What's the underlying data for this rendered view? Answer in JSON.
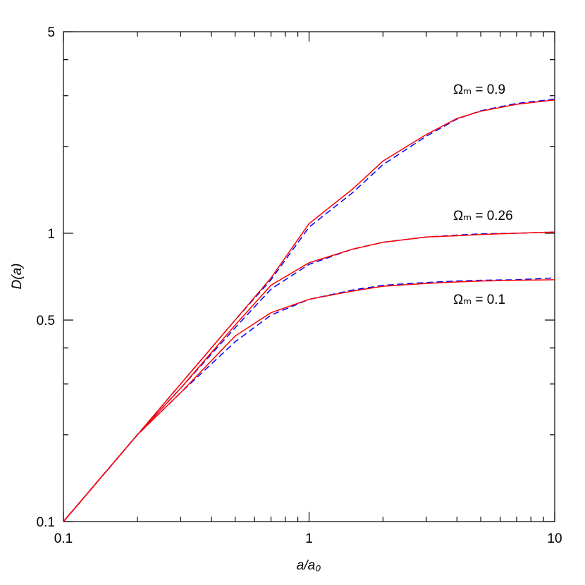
{
  "chart_data": {
    "type": "line",
    "log_x": true,
    "log_y": true,
    "xlabel": "a/a₀",
    "ylabel": "D(a)",
    "annotations": [
      "Ωₘ = 0.9",
      "Ωₘ = 0.26",
      "Ωₘ = 0.1"
    ],
    "x": [
      0.1,
      0.2,
      0.3,
      0.5,
      0.7,
      1,
      1.5,
      2,
      3,
      4,
      5,
      7,
      10
    ],
    "series": [
      {
        "color": "#0000ff",
        "style": "dashed",
        "values": [
          0.1,
          0.2,
          0.3,
          0.5,
          0.69,
          1.05,
          1.38,
          1.73,
          2.17,
          2.49,
          2.66,
          2.82,
          2.92
        ]
      },
      {
        "color": "#ff0000",
        "style": "solid",
        "values": [
          0.1,
          0.2,
          0.3,
          0.5,
          0.7,
          1.08,
          1.42,
          1.78,
          2.2,
          2.5,
          2.65,
          2.8,
          2.9
        ]
      },
      {
        "color": "#0000ff",
        "style": "dashed",
        "values": [
          0.1,
          0.2,
          0.29,
          0.47,
          0.64,
          0.78,
          0.88,
          0.93,
          0.97,
          0.985,
          0.995,
          1.0,
          1.01
        ]
      },
      {
        "color": "#ff0000",
        "style": "solid",
        "values": [
          0.1,
          0.2,
          0.29,
          0.48,
          0.66,
          0.79,
          0.88,
          0.93,
          0.97,
          0.98,
          0.99,
          1.0,
          1.01
        ]
      },
      {
        "color": "#0000ff",
        "style": "dashed",
        "values": [
          0.1,
          0.2,
          0.28,
          0.42,
          0.52,
          0.59,
          0.635,
          0.66,
          0.675,
          0.683,
          0.687,
          0.69,
          0.7
        ]
      },
      {
        "color": "#ff0000",
        "style": "solid",
        "values": [
          0.1,
          0.2,
          0.28,
          0.44,
          0.53,
          0.59,
          0.63,
          0.655,
          0.67,
          0.678,
          0.683,
          0.687,
          0.69
        ]
      }
    ],
    "xlim": [
      0.1,
      10
    ],
    "ylim": [
      0.1,
      5
    ],
    "xticks": [
      0.1,
      1,
      10
    ],
    "yticks": [
      0.1,
      0.5,
      1,
      5
    ],
    "xticks_minor": [
      0.2,
      0.3,
      0.4,
      0.5,
      0.6,
      0.7,
      0.8,
      0.9,
      2,
      3,
      4,
      5,
      6,
      7,
      8,
      9
    ],
    "yticks_minor": [
      0.2,
      0.3,
      0.4,
      2,
      3,
      4
    ]
  }
}
